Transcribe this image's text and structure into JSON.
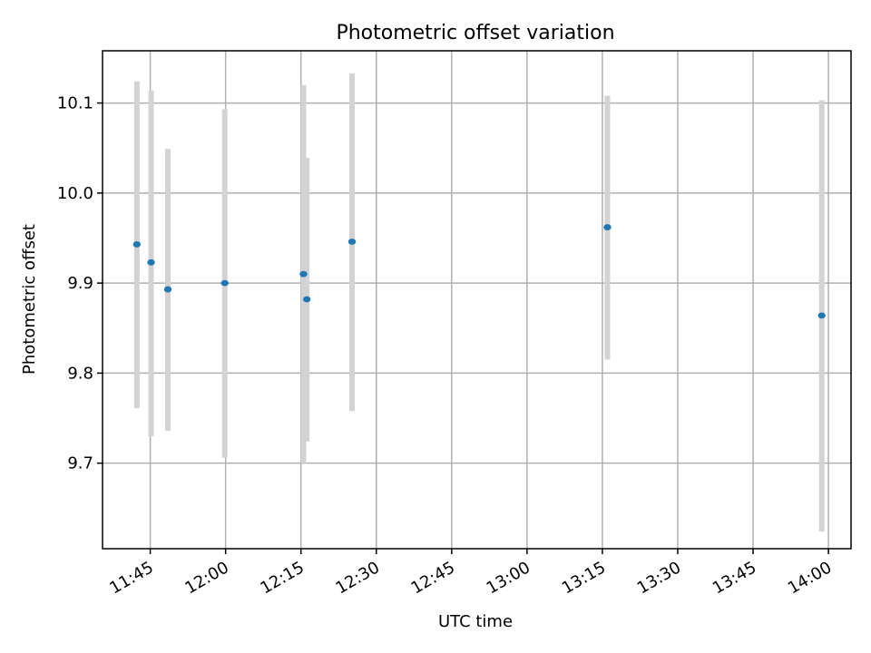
{
  "chart_data": {
    "type": "scatter",
    "title": "Photometric offset variation",
    "xlabel": "UTC time",
    "ylabel": "Photometric offset",
    "x_axis_kind": "time",
    "xlim": [
      "11:35:30",
      "14:04:30"
    ],
    "ylim": [
      9.605,
      10.158
    ],
    "xticks": [
      "11:45",
      "12:00",
      "12:15",
      "12:30",
      "12:45",
      "13:00",
      "13:15",
      "13:30",
      "13:45",
      "14:00"
    ],
    "yticks": [
      9.7,
      9.8,
      9.9,
      10.0,
      10.1
    ],
    "ytick_labels": [
      "9.7",
      "9.8",
      "9.9",
      "10.0",
      "10.1"
    ],
    "grid": true,
    "colors": {
      "points": "#1f77b4",
      "errorbars": "#d3d3d3",
      "grid": "#b0b0b0"
    },
    "points": [
      {
        "x": "11:42:20",
        "y": 9.943,
        "ylow": 9.761,
        "yhigh": 10.124
      },
      {
        "x": "11:45:10",
        "y": 9.923,
        "ylow": 9.73,
        "yhigh": 10.114
      },
      {
        "x": "11:48:30",
        "y": 9.893,
        "ylow": 9.736,
        "yhigh": 10.049
      },
      {
        "x": "11:59:50",
        "y": 9.9,
        "ylow": 9.706,
        "yhigh": 10.093
      },
      {
        "x": "12:15:30",
        "y": 9.91,
        "ylow": 9.7,
        "yhigh": 10.12
      },
      {
        "x": "12:16:10",
        "y": 9.882,
        "ylow": 9.724,
        "yhigh": 10.039
      },
      {
        "x": "12:25:10",
        "y": 9.946,
        "ylow": 9.758,
        "yhigh": 10.133
      },
      {
        "x": "13:16:00",
        "y": 9.962,
        "ylow": 9.815,
        "yhigh": 10.108
      },
      {
        "x": "13:58:40",
        "y": 9.864,
        "ylow": 9.624,
        "yhigh": 10.103
      }
    ]
  }
}
